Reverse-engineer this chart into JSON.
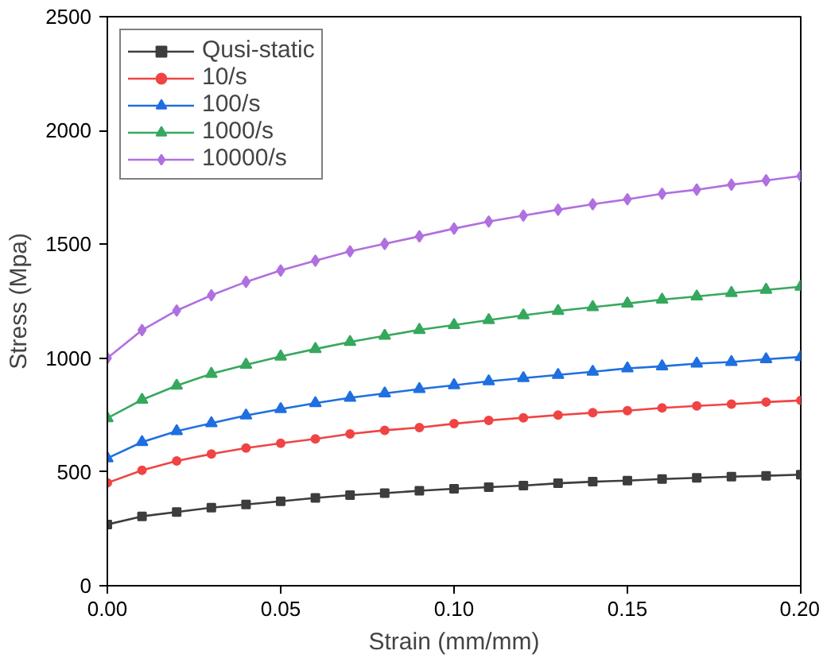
{
  "chart_data": {
    "type": "line",
    "xlabel": "Strain (mm/mm)",
    "ylabel": "Stress (Mpa)",
    "x": [
      0,
      0.01,
      0.02,
      0.03,
      0.04,
      0.05,
      0.06,
      0.07,
      0.08,
      0.09,
      0.1,
      0.11,
      0.12,
      0.13,
      0.14,
      0.15,
      0.16,
      0.17,
      0.18,
      0.19,
      0.2
    ],
    "xlim": [
      0,
      0.2
    ],
    "xticks": [
      {
        "value": 0,
        "label": "0.00"
      },
      {
        "value": 0.05,
        "label": "0.05"
      },
      {
        "value": 0.1,
        "label": "0.10"
      },
      {
        "value": 0.15,
        "label": "0.15"
      },
      {
        "value": 0.2,
        "label": "0.20"
      }
    ],
    "ylim": [
      0,
      2500
    ],
    "yticks": [
      0,
      500,
      1000,
      1500,
      2000,
      2500
    ],
    "grid": false,
    "legend": "top left",
    "line_style": "solid",
    "series": [
      {
        "name": "Qusi-static",
        "color": "#3d3d3d",
        "marker": "square",
        "values": [
          269,
          305,
          324,
          343,
          357,
          371,
          386,
          398,
          407,
          417,
          426,
          433,
          440,
          450,
          457,
          462,
          469,
          474,
          479,
          483,
          488
        ]
      },
      {
        "name": "10/s",
        "color": "#f04444",
        "marker": "circle",
        "values": [
          452,
          507,
          548,
          579,
          605,
          626,
          645,
          667,
          683,
          695,
          712,
          726,
          738,
          750,
          760,
          769,
          781,
          790,
          798,
          807,
          814
        ]
      },
      {
        "name": "100/s",
        "color": "#1f6fe0",
        "marker": "triangle",
        "values": [
          560,
          631,
          679,
          714,
          748,
          776,
          802,
          826,
          845,
          864,
          881,
          898,
          912,
          926,
          940,
          955,
          964,
          976,
          983,
          995,
          1005
        ]
      },
      {
        "name": "1000/s",
        "color": "#36a85e",
        "marker": "triangle",
        "values": [
          736,
          817,
          879,
          931,
          971,
          1007,
          1040,
          1071,
          1098,
          1124,
          1145,
          1167,
          1188,
          1207,
          1224,
          1240,
          1257,
          1271,
          1286,
          1300,
          1314
        ]
      },
      {
        "name": "10000/s",
        "color": "#b070e0",
        "marker": "diamond",
        "values": [
          1000,
          1123,
          1209,
          1276,
          1335,
          1385,
          1428,
          1469,
          1502,
          1535,
          1569,
          1600,
          1626,
          1652,
          1676,
          1698,
          1722,
          1740,
          1762,
          1781,
          1800
        ]
      }
    ]
  }
}
